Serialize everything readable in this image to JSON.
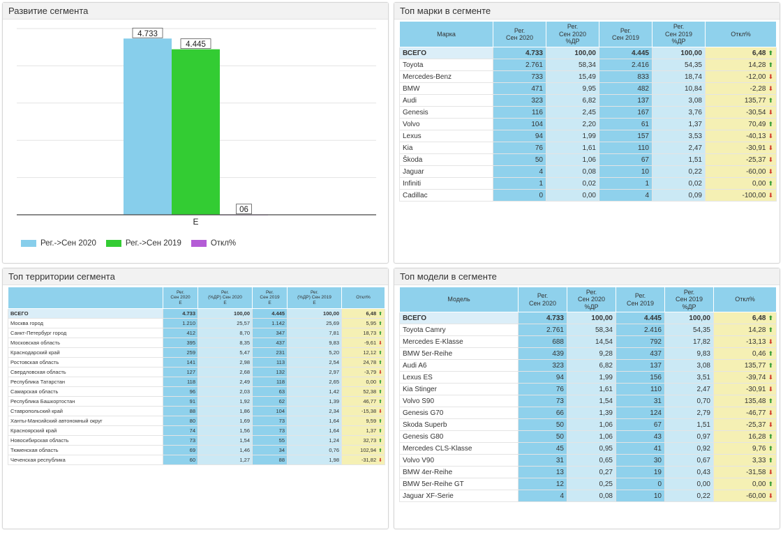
{
  "panels": {
    "chart_title": "Развитие сегмента",
    "brands_title": "Топ марки в сегменте",
    "territory_title": "Топ территории сегмента",
    "models_title": "Топ модели в сегменте"
  },
  "colors": {
    "series1": "#87ceeb",
    "series2": "#33cc33",
    "series3": "#b45cd6",
    "header_bg": "#8fd1ec",
    "light_cell": "#cbe9f5",
    "deviation_cell": "#f5f0b4",
    "arrow_up": "#2f9a2f",
    "arrow_down": "#d23a2a"
  },
  "chart_data": {
    "type": "bar",
    "categories": [
      "E"
    ],
    "series": [
      {
        "name": "Рег.->Сен 2020",
        "values": [
          4733
        ],
        "label": "4.733"
      },
      {
        "name": "Рег.->Сен 2019",
        "values": [
          4445
        ],
        "label": "4.445"
      },
      {
        "name": "Откл%",
        "values": [
          6
        ],
        "label": "06"
      }
    ],
    "ylim": [
      0,
      5000
    ],
    "grid": true,
    "legend": "bottom-left"
  },
  "brands": {
    "headers": [
      "Марка",
      "Рег.\nСен 2020",
      "Рег.\nСен 2020\n%ДР",
      "Рег.\nСен 2019",
      "Рег.\nСен 2019\n%ДР",
      "Откл%"
    ],
    "rows": [
      [
        "ВСЕГО",
        "4.733",
        "100,00",
        "4.445",
        "100,00",
        "6,48",
        "up"
      ],
      [
        "Toyota",
        "2.761",
        "58,34",
        "2.416",
        "54,35",
        "14,28",
        "up"
      ],
      [
        "Mercedes-Benz",
        "733",
        "15,49",
        "833",
        "18,74",
        "-12,00",
        "down"
      ],
      [
        "BMW",
        "471",
        "9,95",
        "482",
        "10,84",
        "-2,28",
        "down"
      ],
      [
        "Audi",
        "323",
        "6,82",
        "137",
        "3,08",
        "135,77",
        "up"
      ],
      [
        "Genesis",
        "116",
        "2,45",
        "167",
        "3,76",
        "-30,54",
        "down"
      ],
      [
        "Volvo",
        "104",
        "2,20",
        "61",
        "1,37",
        "70,49",
        "up"
      ],
      [
        "Lexus",
        "94",
        "1,99",
        "157",
        "3,53",
        "-40,13",
        "down"
      ],
      [
        "Kia",
        "76",
        "1,61",
        "110",
        "2,47",
        "-30,91",
        "down"
      ],
      [
        "Škoda",
        "50",
        "1,06",
        "67",
        "1,51",
        "-25,37",
        "down"
      ],
      [
        "Jaguar",
        "4",
        "0,08",
        "10",
        "0,22",
        "-60,00",
        "down"
      ],
      [
        "Infiniti",
        "1",
        "0,02",
        "1",
        "0,02",
        "0,00",
        "up"
      ],
      [
        "Cadillac",
        "0",
        "0,00",
        "4",
        "0,09",
        "-100,00",
        "down"
      ]
    ]
  },
  "territories": {
    "headers": [
      "",
      "Рег.\nСен 2020\nE",
      "Рег.\n(%ДР) Сен 2020\nE",
      "Рег.\nСен 2019\nE",
      "Рег.\n(%ДР) Сен 2019\nE",
      "Откл%"
    ],
    "rows": [
      [
        "ВСЕГО",
        "4.733",
        "100,00",
        "4.445",
        "100,00",
        "6,48",
        "up"
      ],
      [
        "Москва город",
        "1.210",
        "25,57",
        "1.142",
        "25,69",
        "5,95",
        "up"
      ],
      [
        "Санкт-Петербург город",
        "412",
        "8,70",
        "347",
        "7,81",
        "18,73",
        "up"
      ],
      [
        "Московская область",
        "395",
        "8,35",
        "437",
        "9,83",
        "-9,61",
        "down"
      ],
      [
        "Краснодарский край",
        "259",
        "5,47",
        "231",
        "5,20",
        "12,12",
        "up"
      ],
      [
        "Ростовская область",
        "141",
        "2,98",
        "113",
        "2,54",
        "24,78",
        "up"
      ],
      [
        "Свердловская область",
        "127",
        "2,68",
        "132",
        "2,97",
        "-3,79",
        "down"
      ],
      [
        "Республика Татарстан",
        "118",
        "2,49",
        "118",
        "2,65",
        "0,00",
        "up"
      ],
      [
        "Самарская область",
        "96",
        "2,03",
        "63",
        "1,42",
        "52,38",
        "up"
      ],
      [
        "Республика Башкортостан",
        "91",
        "1,92",
        "62",
        "1,39",
        "46,77",
        "up"
      ],
      [
        "Ставропольский край",
        "88",
        "1,86",
        "104",
        "2,34",
        "-15,38",
        "down"
      ],
      [
        "Ханты-Мансийский автономный округ",
        "80",
        "1,69",
        "73",
        "1,64",
        "9,59",
        "up"
      ],
      [
        "Красноярский край",
        "74",
        "1,56",
        "73",
        "1,64",
        "1,37",
        "up"
      ],
      [
        "Новосибирская область",
        "73",
        "1,54",
        "55",
        "1,24",
        "32,73",
        "up"
      ],
      [
        "Тюменская область",
        "69",
        "1,46",
        "34",
        "0,76",
        "102,94",
        "up"
      ],
      [
        "Чеченская республика",
        "60",
        "1,27",
        "88",
        "1,98",
        "-31,82",
        "down"
      ]
    ]
  },
  "models": {
    "headers": [
      "Модель",
      "Рег.\nСен 2020",
      "Рег.\nСен 2020\n%ДР",
      "Рег.\nСен 2019",
      "Рег.\nСен 2019\n%ДР",
      "Откл%"
    ],
    "rows": [
      [
        "ВСЕГО",
        "4.733",
        "100,00",
        "4.445",
        "100,00",
        "6,48",
        "up"
      ],
      [
        "Toyota Camry",
        "2.761",
        "58,34",
        "2.416",
        "54,35",
        "14,28",
        "up"
      ],
      [
        "Mercedes E-Klasse",
        "688",
        "14,54",
        "792",
        "17,82",
        "-13,13",
        "down"
      ],
      [
        "BMW 5er-Reihe",
        "439",
        "9,28",
        "437",
        "9,83",
        "0,46",
        "up"
      ],
      [
        "Audi A6",
        "323",
        "6,82",
        "137",
        "3,08",
        "135,77",
        "up"
      ],
      [
        "Lexus ES",
        "94",
        "1,99",
        "156",
        "3,51",
        "-39,74",
        "down"
      ],
      [
        "Kia Stinger",
        "76",
        "1,61",
        "110",
        "2,47",
        "-30,91",
        "down"
      ],
      [
        "Volvo S90",
        "73",
        "1,54",
        "31",
        "0,70",
        "135,48",
        "up"
      ],
      [
        "Genesis G70",
        "66",
        "1,39",
        "124",
        "2,79",
        "-46,77",
        "down"
      ],
      [
        "Skoda Superb",
        "50",
        "1,06",
        "67",
        "1,51",
        "-25,37",
        "down"
      ],
      [
        "Genesis G80",
        "50",
        "1,06",
        "43",
        "0,97",
        "16,28",
        "up"
      ],
      [
        "Mercedes CLS-Klasse",
        "45",
        "0,95",
        "41",
        "0,92",
        "9,76",
        "up"
      ],
      [
        "Volvo V90",
        "31",
        "0,65",
        "30",
        "0,67",
        "3,33",
        "up"
      ],
      [
        "BMW 4er-Reihe",
        "13",
        "0,27",
        "19",
        "0,43",
        "-31,58",
        "down"
      ],
      [
        "BMW 5er-Reihe GT",
        "12",
        "0,25",
        "0",
        "0,00",
        "0,00",
        "up"
      ],
      [
        "Jaguar XF-Serie",
        "4",
        "0,08",
        "10",
        "0,22",
        "-60,00",
        "down"
      ]
    ]
  }
}
